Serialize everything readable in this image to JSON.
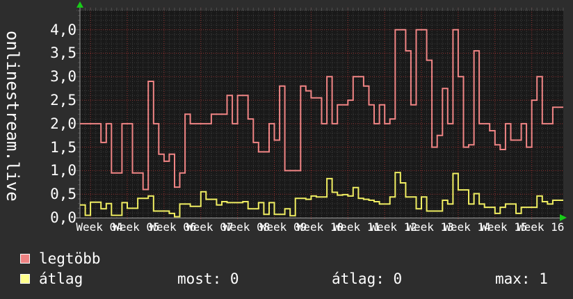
{
  "colors": {
    "background": "#2d2d2d",
    "plot_background": "#191919",
    "grid_minor": "#5f5f5f",
    "grid_major": "#a23434",
    "axis": "#9a9a9a",
    "arrow": "#18cc18",
    "text": "#ffffff"
  },
  "chart_data": {
    "type": "line",
    "step": true,
    "title": "",
    "xlabel": "",
    "ylabel": "onlinestream.live",
    "ylim": [
      0,
      4.41
    ],
    "grid": true,
    "legend_position": "bottom-left",
    "y_ticks": [
      {
        "value": 0.0,
        "label": "0,0"
      },
      {
        "value": 0.5,
        "label": "0,5"
      },
      {
        "value": 1.0,
        "label": "1,0"
      },
      {
        "value": 1.5,
        "label": "1,5"
      },
      {
        "value": 2.0,
        "label": "2,0"
      },
      {
        "value": 2.5,
        "label": "2,5"
      },
      {
        "value": 3.0,
        "label": "3,0"
      },
      {
        "value": 3.5,
        "label": "3,5"
      },
      {
        "value": 4.0,
        "label": "4,0"
      }
    ],
    "y_minor_step": 0.1,
    "y_major_step": 0.5,
    "days_total": 92,
    "x_first_tick_day": 2,
    "x_tick_interval_days": 7,
    "x_tick_labels": [
      "Week 04",
      "Week 05",
      "Week 06",
      "Week 07",
      "Week 08",
      "Week 09",
      "Week 10",
      "Week 11",
      "Week 12",
      "Week 13",
      "Week 14",
      "Week 15",
      "Week 16"
    ],
    "series": [
      {
        "name": "legtöbb",
        "color": "#f18585",
        "values": [
          2,
          2,
          2,
          2,
          1.6,
          2,
          0.95,
          0.95,
          2,
          2,
          0.95,
          0.95,
          0.6,
          2.9,
          2,
          1.35,
          1.2,
          1.35,
          0.65,
          0.95,
          2.2,
          2,
          2,
          2,
          2,
          2.2,
          2.2,
          2.2,
          2.6,
          2,
          2.6,
          2.6,
          2.1,
          1.6,
          1.4,
          1.4,
          2,
          1.65,
          2.8,
          1,
          1,
          1,
          2.8,
          2.7,
          2.55,
          2.55,
          2,
          3,
          2,
          2.4,
          2.4,
          2.5,
          3,
          3,
          2.8,
          2.4,
          2,
          2.4,
          2,
          2.1,
          4,
          4,
          3.55,
          2.4,
          4,
          4,
          3.35,
          1.5,
          1.75,
          2.75,
          2,
          4,
          3,
          1.5,
          1.55,
          3.55,
          2,
          2,
          1.85,
          1.55,
          1.45,
          2,
          1.65,
          1.65,
          2,
          1.5,
          2.5,
          3,
          2,
          2,
          2.35,
          2.35
        ]
      },
      {
        "name": "átlag",
        "color": "#f0ee62",
        "values": [
          0.27,
          0.05,
          0.33,
          0.33,
          0.19,
          0.3,
          0.05,
          0.05,
          0.32,
          0.2,
          0.2,
          0.41,
          0.41,
          0.46,
          0.14,
          0.14,
          0.14,
          0.09,
          0.02,
          0.29,
          0.29,
          0.24,
          0.24,
          0.55,
          0.39,
          0.39,
          0.27,
          0.34,
          0.32,
          0.32,
          0.32,
          0.34,
          0.19,
          0.19,
          0.32,
          0.07,
          0.32,
          0.07,
          0.07,
          0.19,
          0.04,
          0.41,
          0.41,
          0.39,
          0.46,
          0.44,
          0.44,
          0.83,
          0.54,
          0.48,
          0.49,
          0.46,
          0.64,
          0.41,
          0.39,
          0.37,
          0.34,
          0.29,
          0.29,
          0.44,
          0.96,
          0.74,
          0.44,
          0.44,
          0.19,
          0.44,
          0.14,
          0.14,
          0.14,
          0.37,
          0.29,
          0.94,
          0.59,
          0.59,
          0.29,
          0.51,
          0.29,
          0.22,
          0.22,
          0.09,
          0.22,
          0.29,
          0.29,
          0.09,
          0.22,
          0.22,
          0.22,
          0.46,
          0.34,
          0.29,
          0.37,
          0.37
        ]
      }
    ]
  },
  "legend": {
    "items": [
      {
        "label": "legtöbb",
        "color": "#ee8383"
      },
      {
        "label": "átlag",
        "color": "#ffff8d"
      }
    ]
  },
  "stats": [
    {
      "text": "most: 0"
    },
    {
      "text": "átlag: 0"
    },
    {
      "text": "max: 1"
    }
  ]
}
